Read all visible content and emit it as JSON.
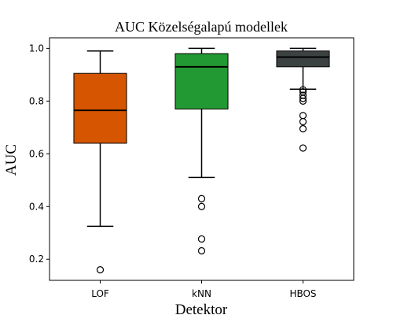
{
  "chart_data": {
    "type": "box",
    "title": "AUC Közelségalapú modellek",
    "xlabel": "Detektor",
    "ylabel": "AUC",
    "ylim": [
      0.12,
      1.04
    ],
    "yticks": [
      0.2,
      0.4,
      0.6,
      0.8,
      1.0
    ],
    "ytick_labels": [
      "0.2",
      "0.4",
      "0.6",
      "0.8",
      "1.0"
    ],
    "grid": false,
    "categories": [
      "LOF",
      "kNN",
      "HBOS"
    ],
    "boxes": [
      {
        "name": "LOF",
        "color": "#d55500",
        "whisker_low": 0.325,
        "q1": 0.64,
        "median": 0.765,
        "q3": 0.905,
        "whisker_high": 0.99,
        "outliers": [
          0.16
        ]
      },
      {
        "name": "kNN",
        "color": "#229933",
        "whisker_low": 0.51,
        "q1": 0.77,
        "median": 0.93,
        "q3": 0.98,
        "whisker_high": 1.0,
        "outliers": [
          0.43,
          0.4,
          0.277,
          0.232
        ]
      },
      {
        "name": "HBOS",
        "color": "#3c4242",
        "whisker_low": 0.845,
        "q1": 0.93,
        "median": 0.967,
        "q3": 0.99,
        "whisker_high": 1.0,
        "outliers": [
          0.843,
          0.835,
          0.822,
          0.81,
          0.8,
          0.745,
          0.722,
          0.695,
          0.622
        ]
      }
    ]
  }
}
